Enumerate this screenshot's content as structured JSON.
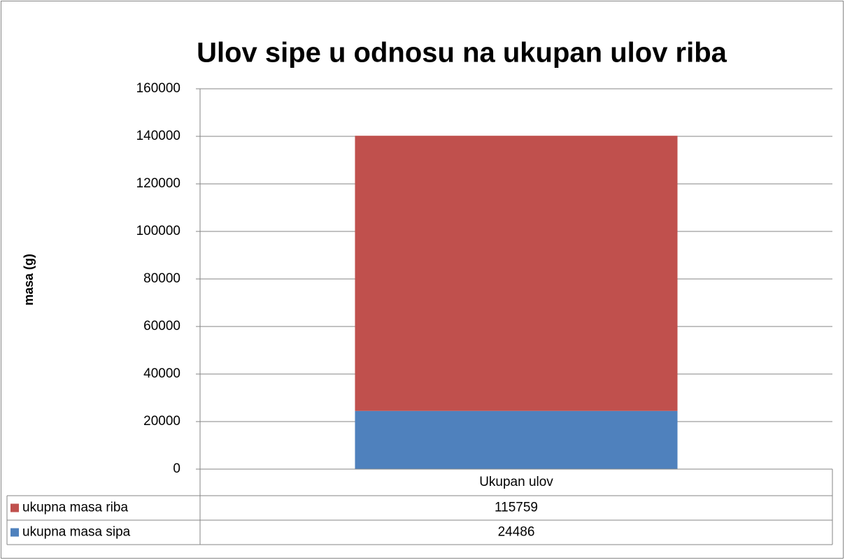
{
  "chart_data": {
    "type": "stacked-bar",
    "title": "Ulov sipe u odnosu na ukupan ulov riba",
    "y_label": "masa (g)",
    "categories": [
      "Ukupan ulov"
    ],
    "series": [
      {
        "name": "ukupna masa sipa",
        "color": "#4f81bd",
        "values": [
          24486
        ]
      },
      {
        "name": "ukupna masa riba",
        "color": "#c0504d",
        "values": [
          115759
        ]
      }
    ],
    "ylim": [
      0,
      160000
    ],
    "yticks": [
      0,
      20000,
      40000,
      60000,
      80000,
      100000,
      120000,
      140000,
      160000
    ],
    "grid": true,
    "data_table": true
  }
}
